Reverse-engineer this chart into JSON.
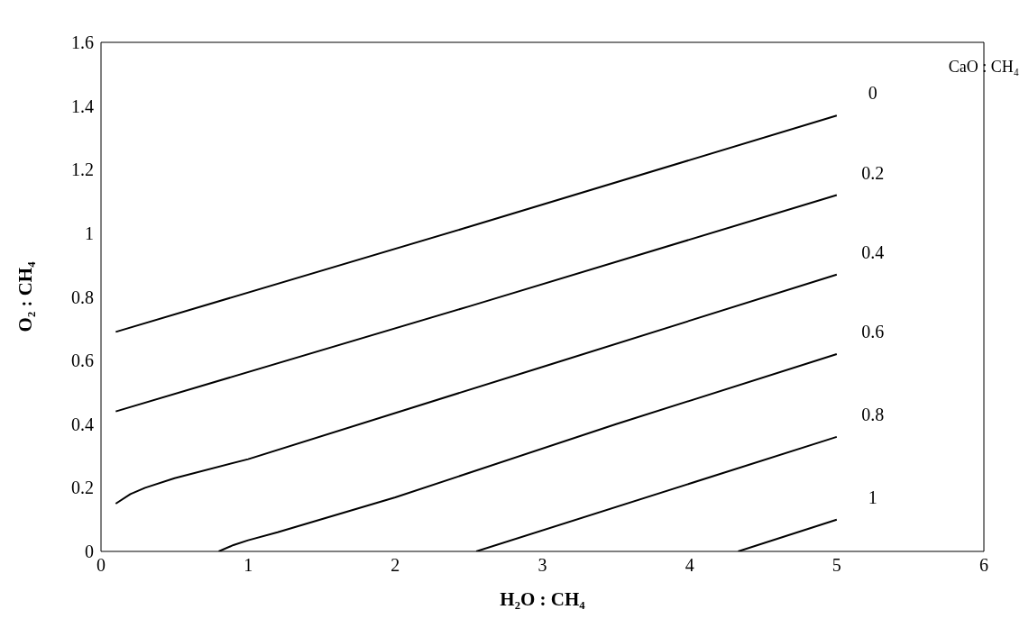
{
  "chart_data": {
    "type": "line",
    "xlabel": "H₂O : CH₄",
    "ylabel": "O₂ : CH₄",
    "legend_title": "CaO : CH₄",
    "xlim": [
      0,
      6
    ],
    "xticks": [
      0,
      1,
      2,
      3,
      4,
      5,
      6
    ],
    "ylim": [
      0,
      1.6
    ],
    "yticks": [
      0,
      0.2,
      0.4,
      0.6,
      0.8,
      1,
      1.2,
      1.4,
      1.6
    ],
    "grid": false,
    "marker": "none",
    "line_style": "solid",
    "series": [
      {
        "name": "0",
        "color": "#000000",
        "x": [
          0.1,
          2.5,
          5
        ],
        "values": [
          0.69,
          1.02,
          1.37
        ]
      },
      {
        "name": "0.2",
        "color": "#000000",
        "x": [
          0.1,
          2.5,
          5
        ],
        "values": [
          0.44,
          0.77,
          1.12
        ]
      },
      {
        "name": "0.4",
        "color": "#000000",
        "x": [
          0.1,
          0.2,
          0.3,
          0.5,
          1,
          3,
          5
        ],
        "values": [
          0.15,
          0.18,
          0.2,
          0.23,
          0.29,
          0.58,
          0.87
        ]
      },
      {
        "name": "0.6",
        "color": "#000000",
        "x": [
          0.8,
          0.9,
          1,
          1.2,
          2,
          3.5,
          5
        ],
        "values": [
          0,
          0.02,
          0.035,
          0.06,
          0.17,
          0.4,
          0.62
        ]
      },
      {
        "name": "0.8",
        "color": "#000000",
        "x": [
          2.55,
          5
        ],
        "values": [
          0,
          0.36
        ]
      },
      {
        "name": "1",
        "color": "#000000",
        "x": [
          4.33,
          5
        ],
        "values": [
          0,
          0.1
        ]
      }
    ]
  }
}
